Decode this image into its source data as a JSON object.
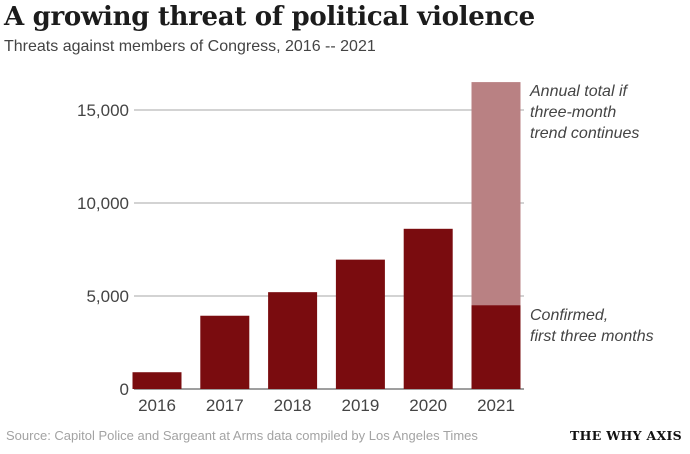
{
  "header": {
    "title": "A growing threat of political violence",
    "subtitle": "Threats against members of Congress, 2016 -- 2021"
  },
  "footer": {
    "source": "Source: Capitol Police and Sargeant at Arms data compiled by Los Angeles Times",
    "brand": "THE WHY AXIS"
  },
  "colors": {
    "bar": "#7a0c0f",
    "projection": "#b98183",
    "grid": "#8a8a8a",
    "text": "#444444"
  },
  "chart_data": {
    "type": "bar",
    "title": "A growing threat of political violence",
    "subtitle": "Threats against members of Congress, 2016 -- 2021",
    "categories": [
      "2016",
      "2017",
      "2018",
      "2019",
      "2020",
      "2021"
    ],
    "series": [
      {
        "name": "Confirmed, first three months",
        "values": [
          902,
          3939,
          5206,
          6955,
          8613,
          4500
        ]
      },
      {
        "name": "Annual total if three-month trend continues",
        "values": [
          null,
          null,
          null,
          null,
          null,
          16500
        ]
      }
    ],
    "yticks": [
      0,
      5000,
      10000,
      15000
    ],
    "ytick_labels": [
      "0",
      "5,000",
      "10,000",
      "15,000"
    ],
    "ylim": [
      0,
      16500
    ],
    "grid": true,
    "annotations": [
      {
        "lines": [
          "Annual total if",
          "three-month",
          "trend continues"
        ]
      },
      {
        "lines": [
          "Confirmed,",
          "first three months"
        ]
      }
    ]
  }
}
